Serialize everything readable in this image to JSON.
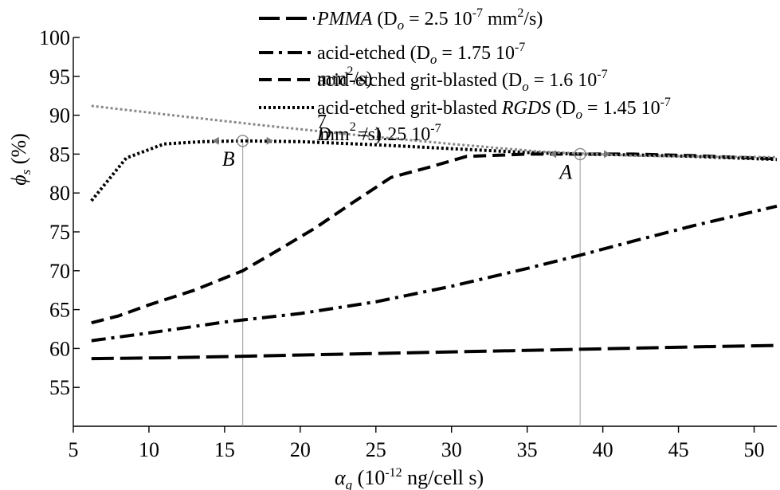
{
  "chart_data": {
    "type": "line",
    "x_ticks": [
      "5",
      "10",
      "15",
      "20",
      "25",
      "30",
      "35",
      "40",
      "45",
      "50"
    ],
    "y_ticks": [
      "55",
      "60",
      "65",
      "70",
      "75",
      "80",
      "85",
      "90",
      "95",
      "100"
    ],
    "xlim": [
      5,
      51.5
    ],
    "ylim": [
      50,
      100
    ],
    "grid": false,
    "legend_position": "top-right",
    "xlabel": {
      "symbol": "α",
      "sub": "g",
      "prefix": " (10",
      "sup": "-12",
      "suffix": " ng/cell s)"
    },
    "ylabel": {
      "symbol": "ϕ",
      "sub": "s",
      "suffix": " (%)"
    },
    "series": [
      {
        "name": "PMMA (Do = 2.5 10-7 mm2/s)",
        "dash": "long-dash",
        "color": "#000000",
        "x": [
          6.2,
          11,
          16,
          21,
          26,
          31,
          36,
          41,
          46,
          51.5
        ],
        "y": [
          58.7,
          58.8,
          59.0,
          59.2,
          59.4,
          59.6,
          59.8,
          60.0,
          60.2,
          60.4
        ]
      },
      {
        "name": "acid-etched (Do = 1.75 10-7 mm2/s)",
        "dash": "dash-dot",
        "color": "#000000",
        "x": [
          6.2,
          10,
          15,
          20,
          25,
          30,
          35,
          38.5,
          42,
          46,
          51.5
        ],
        "y": [
          61.0,
          62.0,
          63.4,
          64.5,
          66.0,
          68.0,
          70.3,
          72.0,
          73.8,
          75.8,
          78.3
        ]
      },
      {
        "name": "acid-etched grit-blasted (Do = 1.6 10-7 mm2/s)",
        "dash": "dash",
        "color": "#000000",
        "x": [
          6.2,
          8,
          10,
          13,
          16.2,
          18.5,
          21,
          23.5,
          26,
          28.5,
          31,
          35,
          38.5,
          42,
          46,
          51.5
        ],
        "y": [
          63.3,
          64.2,
          65.6,
          67.5,
          70.0,
          72.6,
          75.5,
          78.8,
          82.0,
          83.3,
          84.7,
          85.0,
          85.0,
          85.0,
          84.8,
          84.4
        ]
      },
      {
        "name": "acid-etched grit-blasted RGDS (Do = 1.45 10-7 mm2/s)",
        "dash": "dotted",
        "color": "#000000",
        "x": [
          6.2,
          8.5,
          11,
          13.5,
          16.2,
          20,
          25,
          30,
          35,
          38.5,
          42,
          46,
          51.5
        ],
        "y": [
          79.0,
          84.5,
          86.3,
          86.6,
          86.7,
          86.6,
          86.2,
          85.7,
          85.2,
          85.0,
          84.9,
          84.7,
          84.3
        ]
      },
      {
        "name": "Do = 1.25 10-7 mm2/s",
        "dash": "dotted",
        "color": "#888888",
        "x": [
          6.2,
          12,
          18,
          24,
          30,
          36,
          42,
          46,
          51.5
        ],
        "y": [
          91.2,
          89.9,
          88.6,
          87.4,
          86.3,
          85.3,
          84.8,
          84.7,
          84.6
        ]
      }
    ],
    "legend_entries": [
      {
        "italic_prefix": "PMMA",
        "text": " (D",
        "sub": "o",
        "mid": " = 2.5 10",
        "sup": "-7",
        "tail": " mm",
        "sup2": "2",
        "end": "/s)"
      },
      {
        "italic_prefix": "",
        "text": "acid-etched (D",
        "sub": "o",
        "mid": " = 1.75 10",
        "sup": "-7",
        "tail": "",
        "sup2": "",
        "end": ""
      },
      {
        "italic_prefix": "",
        "text": "acid-etched grit-blasted (D",
        "sub": "o",
        "mid": " = 1.6 10",
        "sup": "-7",
        "tail": "",
        "sup2": "",
        "end": ""
      },
      {
        "italic_prefix": "",
        "text": "acid-etched grit-blasted ",
        "italic_mid": "RGDS",
        "text2": " (D",
        "sub": "o",
        "mid": " = 1.45 10",
        "sup": "-7",
        "tail": "",
        "sup2": "",
        "end": ""
      }
    ],
    "overlap_texts": {
      "mm1": "mm",
      "mm1_sup": "2",
      "mm1_end": "/s)",
      "d5_D": "D",
      "d5_mm": "mm",
      "d5_sup": "2",
      "d5_rest": "/s)",
      "d5_val": " = 1.25 10",
      "d5_valsup": "-7",
      "seven": "7"
    },
    "markers": [
      {
        "label": "A",
        "x": 38.5,
        "y": 85.0
      },
      {
        "label": "B",
        "x": 16.2,
        "y": 86.7
      }
    ]
  }
}
